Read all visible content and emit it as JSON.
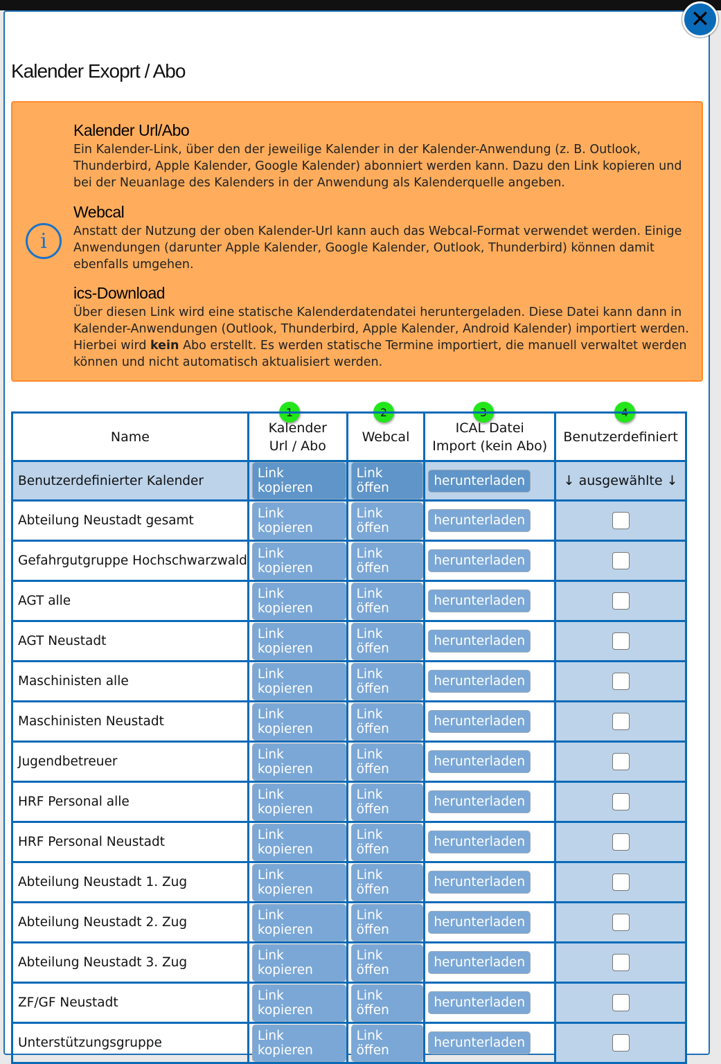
{
  "modal": {
    "title": "Kalender Exoprt / Abo",
    "close_icon": "close-icon"
  },
  "info": {
    "icon": "info-icon",
    "sections": [
      {
        "heading": "Kalender Url/Abo",
        "text": "Ein Kalender-Link, über den der jeweilige Kalender in der Kalender-Anwendung (z. B. Outlook, Thunderbird, Apple Kalender, Google Kalender) abonniert werden kann. Dazu den Link kopieren und bei der Neuanlage des Kalenders in der Anwendung als Kalenderquelle angeben."
      },
      {
        "heading": "Webcal",
        "text": "Anstatt der Nutzung der oben Kalender-Url kann auch das Webcal-Format verwendet werden. Einige Anwendungen (darunter Apple Kalender, Google Kalender, Outlook, Thunderbird) können damit ebenfalls umgehen."
      },
      {
        "heading": "ics-Download",
        "text_before": "Über diesen Link wird eine statische Kalenderdatendatei heruntergeladen. Diese Datei kann dann in Kalender-Anwendungen (Outlook, Thunderbird, Apple Kalender, Android Kalender) importiert werden. Hierbei wird ",
        "bold": "kein",
        "text_after": " Abo erstellt. Es werden statische Termine importiert, die manuell verwaltet werden können und nicht automatisch aktualisiert werden."
      }
    ]
  },
  "badges": [
    "1",
    "2",
    "3",
    "4"
  ],
  "table": {
    "headers": [
      "Name",
      "Kalender\nUrl / Abo",
      "Webcal",
      "ICAL Datei\nImport (kein Abo)",
      "Benutzerdefiniert"
    ],
    "buttons": {
      "copy": "Link kopieren",
      "open": "Link öffen",
      "download": "herunterladen"
    },
    "first_row": {
      "name": "Benutzerdefinierter Kalender",
      "selected_label": "↓ ausgewählte ↓"
    },
    "rows": [
      "Abteilung Neustadt gesamt",
      "Gefahrgutgruppe Hochschwarzwald",
      "AGT alle",
      "AGT Neustadt",
      "Maschinisten alle",
      "Maschinisten Neustadt",
      "Jugendbetreuer",
      "HRF Personal alle",
      "HRF Personal Neustadt",
      "Abteilung Neustadt 1. Zug",
      "Abteilung Neustadt 2. Zug",
      "Abteilung Neustadt 3. Zug",
      "ZF/GF Neustadt",
      "Unterstützungsgruppe"
    ]
  },
  "colors": {
    "accent": "#0a6ab8",
    "warning": "#ffad5c",
    "button": "#7aa7d6",
    "badge": "#22e61a"
  }
}
